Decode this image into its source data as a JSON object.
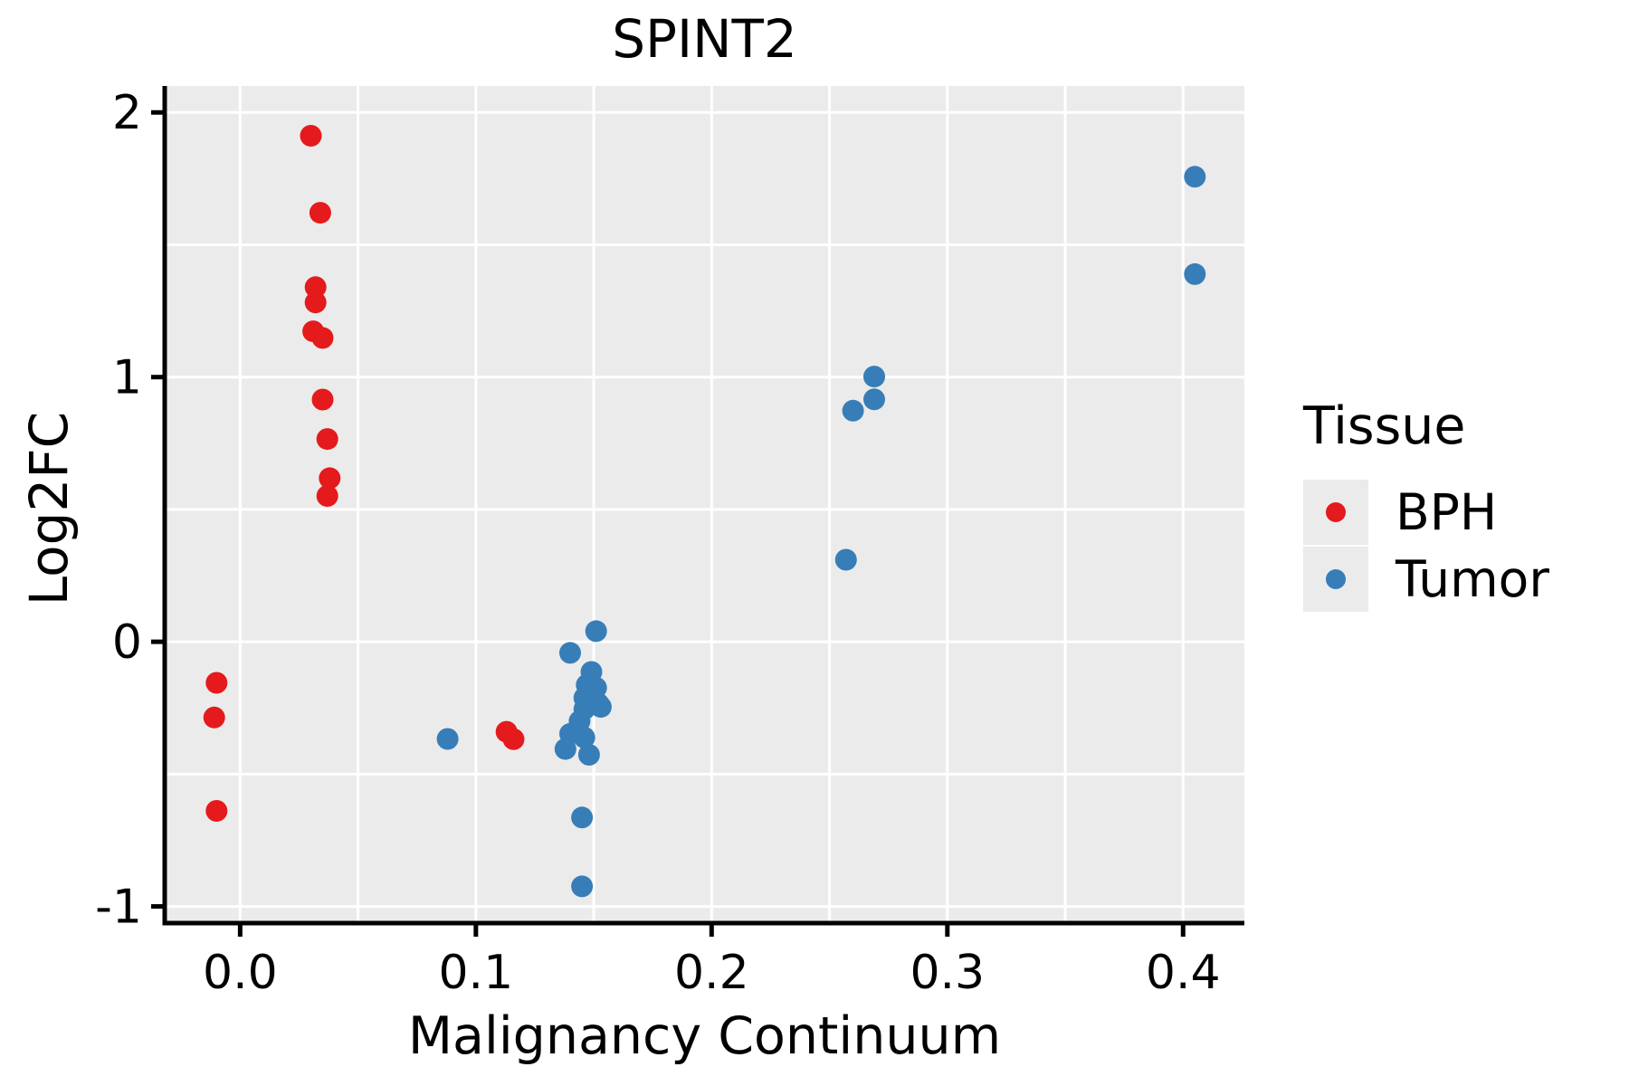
{
  "chart_data": {
    "type": "scatter",
    "title": "SPINT2",
    "xlabel": "Malignancy Continuum",
    "ylabel": "Log2FC",
    "xlim": [
      -0.032,
      0.426
    ],
    "ylim": [
      -1.063,
      2.1
    ],
    "x_ticks": [
      0.0,
      0.1,
      0.2,
      0.3,
      0.4
    ],
    "x_tick_labels": [
      "0.0",
      "0.1",
      "0.2",
      "0.3",
      "0.4"
    ],
    "y_ticks": [
      -1,
      0,
      1,
      2
    ],
    "y_tick_labels": [
      "-1",
      "0",
      "1",
      "2"
    ],
    "x_gridlines": [
      0.0,
      0.05,
      0.1,
      0.15,
      0.2,
      0.25,
      0.3,
      0.35,
      0.4
    ],
    "y_gridlines": [
      -1.0,
      -0.5,
      0.0,
      0.5,
      1.0,
      1.5,
      2.0
    ],
    "grid": true,
    "panel_bg": "#EBEBEB",
    "grid_color": "#FFFFFF",
    "axis_color": "#000000",
    "tick_label_size": 52,
    "point_radius": 12,
    "legend": {
      "title": "Tissue",
      "position": "right",
      "entries": [
        {
          "label": "BPH",
          "color": "#E41A1C"
        },
        {
          "label": "Tumor",
          "color": "#377EB8"
        }
      ]
    },
    "series": [
      {
        "name": "BPH",
        "color": "#E41A1C",
        "points": [
          [
            -0.01,
            -0.155
          ],
          [
            -0.011,
            -0.286
          ],
          [
            -0.01,
            -0.639
          ],
          [
            0.03,
            1.912
          ],
          [
            0.034,
            1.621
          ],
          [
            0.032,
            1.34
          ],
          [
            0.032,
            1.282
          ],
          [
            0.031,
            1.173
          ],
          [
            0.035,
            1.148
          ],
          [
            0.035,
            0.915
          ],
          [
            0.037,
            0.766
          ],
          [
            0.038,
            0.618
          ],
          [
            0.037,
            0.551
          ],
          [
            0.113,
            -0.34
          ],
          [
            0.116,
            -0.368
          ]
        ]
      },
      {
        "name": "Tumor",
        "color": "#377EB8",
        "points": [
          [
            0.088,
            -0.367
          ],
          [
            0.151,
            0.04
          ],
          [
            0.14,
            -0.042
          ],
          [
            0.149,
            -0.114
          ],
          [
            0.147,
            -0.163
          ],
          [
            0.151,
            -0.174
          ],
          [
            0.146,
            -0.212
          ],
          [
            0.152,
            -0.234
          ],
          [
            0.153,
            -0.246
          ],
          [
            0.146,
            -0.255
          ],
          [
            0.144,
            -0.3
          ],
          [
            0.14,
            -0.348
          ],
          [
            0.146,
            -0.362
          ],
          [
            0.138,
            -0.405
          ],
          [
            0.148,
            -0.427
          ],
          [
            0.145,
            -0.664
          ],
          [
            0.145,
            -0.924
          ],
          [
            0.269,
            1.002
          ],
          [
            0.269,
            0.916
          ],
          [
            0.26,
            0.873
          ],
          [
            0.257,
            0.31
          ],
          [
            0.405,
            1.757
          ],
          [
            0.405,
            1.389
          ]
        ]
      }
    ]
  }
}
